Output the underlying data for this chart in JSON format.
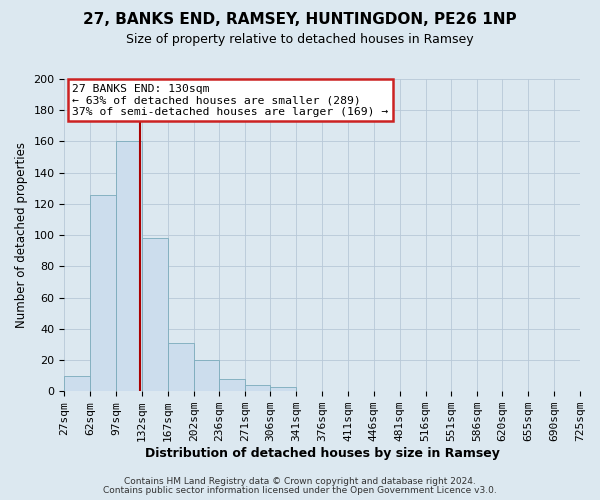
{
  "title": "27, BANKS END, RAMSEY, HUNTINGDON, PE26 1NP",
  "subtitle": "Size of property relative to detached houses in Ramsey",
  "xlabel": "Distribution of detached houses by size in Ramsey",
  "ylabel": "Number of detached properties",
  "bin_edges": [
    27,
    62,
    97,
    132,
    167,
    202,
    236,
    271,
    306,
    341,
    376,
    411,
    446,
    481,
    516,
    551,
    586,
    620,
    655,
    690,
    725
  ],
  "counts": [
    10,
    126,
    160,
    98,
    31,
    20,
    8,
    4,
    3,
    0,
    0,
    0,
    0,
    0,
    0,
    0,
    0,
    0,
    0,
    0
  ],
  "bar_color": "#ccdded",
  "bar_edge_color": "#7aaabb",
  "property_size": 130,
  "vline_color": "#aa0000",
  "annotation_line1": "27 BANKS END: 130sqm",
  "annotation_line2": "← 63% of detached houses are smaller (289)",
  "annotation_line3": "37% of semi-detached houses are larger (169) →",
  "annotation_box_color": "white",
  "annotation_box_edge": "#cc2222",
  "ylim": [
    0,
    200
  ],
  "yticks": [
    0,
    20,
    40,
    60,
    80,
    100,
    120,
    140,
    160,
    180,
    200
  ],
  "tick_labels": [
    "27sqm",
    "62sqm",
    "97sqm",
    "132sqm",
    "167sqm",
    "202sqm",
    "236sqm",
    "271sqm",
    "306sqm",
    "341sqm",
    "376sqm",
    "411sqm",
    "446sqm",
    "481sqm",
    "516sqm",
    "551sqm",
    "586sqm",
    "620sqm",
    "655sqm",
    "690sqm",
    "725sqm"
  ],
  "footer1": "Contains HM Land Registry data © Crown copyright and database right 2024.",
  "footer2": "Contains public sector information licensed under the Open Government Licence v3.0.",
  "bg_color": "#dce8f0",
  "plot_bg_color": "#dce8f0",
  "grid_color": "#b8c8d8",
  "title_fontsize": 11,
  "subtitle_fontsize": 9
}
